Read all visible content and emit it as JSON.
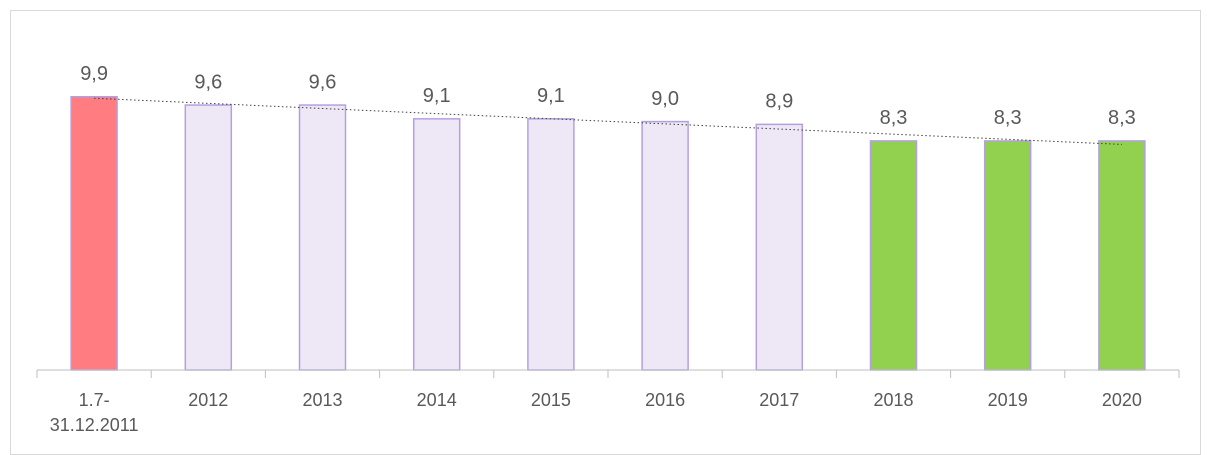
{
  "chart_data": {
    "type": "bar",
    "categories": [
      "1.7-\n31.12.2011",
      "2012",
      "2013",
      "2014",
      "2015",
      "2016",
      "2017",
      "2018",
      "2019",
      "2020"
    ],
    "values": [
      9.9,
      9.6,
      9.6,
      9.1,
      9.1,
      9.0,
      8.9,
      8.3,
      8.3,
      8.3
    ],
    "value_labels": [
      "9,9",
      "9,6",
      "9,6",
      "9,1",
      "9,1",
      "9,0",
      "8,9",
      "8,3",
      "8,3",
      "8,3"
    ],
    "colors": [
      "#ff7c80",
      "#ede7f6",
      "#ede7f6",
      "#ede7f6",
      "#ede7f6",
      "#ede7f6",
      "#ede7f6",
      "#92d050",
      "#92d050",
      "#92d050"
    ],
    "edgecolor": "#b4a0e0",
    "ylim": [
      0,
      10
    ],
    "trendline": true
  }
}
